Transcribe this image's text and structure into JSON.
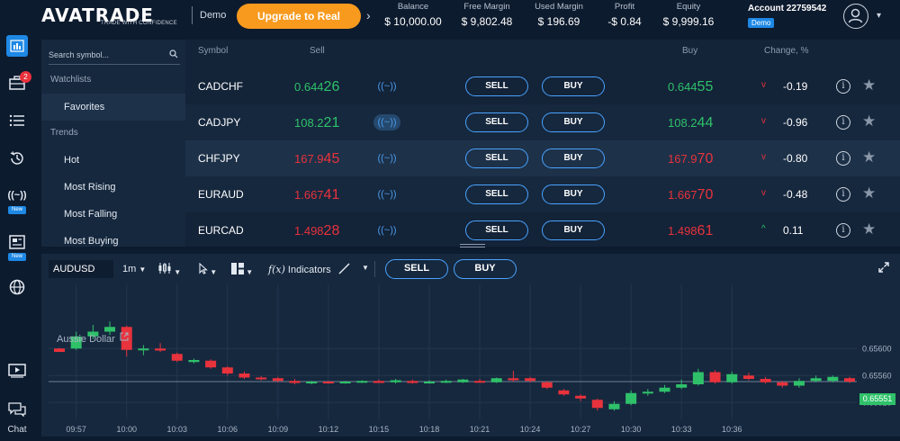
{
  "header": {
    "logo_text": "AVATRADE",
    "logo_tagline": "TRADE WITH CONFIDENCE",
    "mode": "Demo",
    "upgrade_label": "Upgrade to Real",
    "stats": [
      {
        "label": "Balance",
        "value": "$ 10,000.00"
      },
      {
        "label": "Free Margin",
        "value": "$ 9,802.48"
      },
      {
        "label": "Used Margin",
        "value": "$ 196.69"
      },
      {
        "label": "Profit",
        "value": "-$ 0.84"
      },
      {
        "label": "Equity",
        "value": "$ 9,999.16"
      }
    ],
    "account_title": "Account 22759542",
    "account_badge": "Demo"
  },
  "sidenav": {
    "badge_count": "2",
    "new_label": "New",
    "chat_label": "Chat"
  },
  "watchlist": {
    "search_placeholder": "Search symbol...",
    "items": [
      {
        "label": "Watchlists",
        "kind": "head"
      },
      {
        "label": "Favorites",
        "kind": "sub"
      },
      {
        "label": "Trends",
        "kind": "head"
      },
      {
        "label": "Hot",
        "kind": "sub"
      },
      {
        "label": "Most Rising",
        "kind": "sub"
      },
      {
        "label": "Most Falling",
        "kind": "sub"
      },
      {
        "label": "Most Buying",
        "kind": "sub"
      }
    ]
  },
  "table": {
    "columns": {
      "symbol": "Symbol",
      "sell": "Sell",
      "buy": "Buy",
      "change": "Change, %"
    },
    "wave_glyph": "((~))",
    "sell_label": "SELL",
    "buy_label": "BUY",
    "rows": [
      {
        "symbol": "CADCHF",
        "sell_pre": "0.644",
        "sell_big": "26",
        "buy_pre": "0.644",
        "buy_big": "55",
        "color": "green",
        "direction": "down",
        "change": "-0.19"
      },
      {
        "symbol": "CADJPY",
        "sell_pre": "108.2",
        "sell_big": "21",
        "buy_pre": "108.2",
        "buy_big": "44",
        "color": "green",
        "direction": "down",
        "change": "-0.96"
      },
      {
        "symbol": "CHFJPY",
        "sell_pre": "167.9",
        "sell_big": "45",
        "buy_pre": "167.9",
        "buy_big": "70",
        "color": "red",
        "direction": "down",
        "change": "-0.80"
      },
      {
        "symbol": "EURAUD",
        "sell_pre": "1.667",
        "sell_big": "41",
        "buy_pre": "1.667",
        "buy_big": "70",
        "color": "red",
        "direction": "down",
        "change": "-0.48"
      },
      {
        "symbol": "EURCAD",
        "sell_pre": "1.498",
        "sell_big": "28",
        "buy_pre": "1.498",
        "buy_big": "61",
        "color": "red",
        "direction": "up",
        "change": "0.11"
      }
    ]
  },
  "chart_toolbar": {
    "symbol": "AUDUSD",
    "timeframe": "1m",
    "indicators_label": "Indicators",
    "sell_label": "SELL",
    "buy_label": "BUY"
  },
  "chart_data": {
    "type": "candlestick",
    "title": "Aussie Dollar",
    "current_price": "0.65551",
    "y_ticks": [
      "0.65600",
      "0.65560",
      "0.65520"
    ],
    "ylim": [
      0.65495,
      0.65695
    ],
    "x_ticks": [
      "09:57",
      "10:00",
      "10:03",
      "10:06",
      "10:09",
      "10:12",
      "10:15",
      "10:18",
      "10:21",
      "10:24",
      "10:27",
      "10:30",
      "10:33",
      "10:36"
    ],
    "candles": [
      {
        "o": 0.656,
        "h": 0.65601,
        "l": 0.65595,
        "c": 0.65595
      },
      {
        "o": 0.656,
        "h": 0.65625,
        "l": 0.65598,
        "c": 0.65618
      },
      {
        "o": 0.65618,
        "h": 0.65635,
        "l": 0.65614,
        "c": 0.65625
      },
      {
        "o": 0.65625,
        "h": 0.6564,
        "l": 0.6562,
        "c": 0.65632
      },
      {
        "o": 0.65632,
        "h": 0.65634,
        "l": 0.65588,
        "c": 0.65598
      },
      {
        "o": 0.65598,
        "h": 0.65605,
        "l": 0.6559,
        "c": 0.656
      },
      {
        "o": 0.656,
        "h": 0.65608,
        "l": 0.65595,
        "c": 0.65597
      },
      {
        "o": 0.65592,
        "h": 0.65594,
        "l": 0.6558,
        "c": 0.65582
      },
      {
        "o": 0.6558,
        "h": 0.65585,
        "l": 0.65578,
        "c": 0.65583
      },
      {
        "o": 0.65582,
        "h": 0.65584,
        "l": 0.6557,
        "c": 0.65572
      },
      {
        "o": 0.65572,
        "h": 0.65574,
        "l": 0.6556,
        "c": 0.65563
      },
      {
        "o": 0.65563,
        "h": 0.65566,
        "l": 0.65555,
        "c": 0.65557
      },
      {
        "o": 0.65557,
        "h": 0.65559,
        "l": 0.65553,
        "c": 0.65556
      },
      {
        "o": 0.65556,
        "h": 0.65558,
        "l": 0.6555,
        "c": 0.65552
      },
      {
        "o": 0.65552,
        "h": 0.65555,
        "l": 0.65547,
        "c": 0.65549
      },
      {
        "o": 0.65549,
        "h": 0.65552,
        "l": 0.65547,
        "c": 0.65551
      },
      {
        "o": 0.65551,
        "h": 0.65552,
        "l": 0.65548,
        "c": 0.6555
      },
      {
        "o": 0.6555,
        "h": 0.65552,
        "l": 0.65548,
        "c": 0.65551
      },
      {
        "o": 0.6555,
        "h": 0.65553,
        "l": 0.65549,
        "c": 0.65552
      },
      {
        "o": 0.65552,
        "h": 0.65554,
        "l": 0.65549,
        "c": 0.65549
      },
      {
        "o": 0.6555,
        "h": 0.65555,
        "l": 0.65548,
        "c": 0.65553
      },
      {
        "o": 0.65552,
        "h": 0.65554,
        "l": 0.65548,
        "c": 0.65549
      },
      {
        "o": 0.6555,
        "h": 0.65553,
        "l": 0.65548,
        "c": 0.65551
      },
      {
        "o": 0.65551,
        "h": 0.65554,
        "l": 0.65549,
        "c": 0.65552
      },
      {
        "o": 0.6555,
        "h": 0.65555,
        "l": 0.65549,
        "c": 0.65554
      },
      {
        "o": 0.65552,
        "h": 0.65555,
        "l": 0.6555,
        "c": 0.6555
      },
      {
        "o": 0.6555,
        "h": 0.65557,
        "l": 0.65549,
        "c": 0.65556
      },
      {
        "o": 0.65556,
        "h": 0.65567,
        "l": 0.65551,
        "c": 0.65553
      },
      {
        "o": 0.65556,
        "h": 0.65558,
        "l": 0.6555,
        "c": 0.65552
      },
      {
        "o": 0.6555,
        "h": 0.65552,
        "l": 0.6554,
        "c": 0.65542
      },
      {
        "o": 0.65538,
        "h": 0.6554,
        "l": 0.6553,
        "c": 0.65532
      },
      {
        "o": 0.6553,
        "h": 0.65532,
        "l": 0.65522,
        "c": 0.65526
      },
      {
        "o": 0.65524,
        "h": 0.65526,
        "l": 0.65508,
        "c": 0.65512
      },
      {
        "o": 0.6551,
        "h": 0.65522,
        "l": 0.65508,
        "c": 0.65518
      },
      {
        "o": 0.65518,
        "h": 0.65538,
        "l": 0.65516,
        "c": 0.65534
      },
      {
        "o": 0.65535,
        "h": 0.6554,
        "l": 0.6553,
        "c": 0.65536
      },
      {
        "o": 0.65536,
        "h": 0.65546,
        "l": 0.65534,
        "c": 0.65542
      },
      {
        "o": 0.65542,
        "h": 0.65554,
        "l": 0.6554,
        "c": 0.65547
      },
      {
        "o": 0.65547,
        "h": 0.6557,
        "l": 0.65545,
        "c": 0.65565
      },
      {
        "o": 0.65565,
        "h": 0.65568,
        "l": 0.65548,
        "c": 0.6555
      },
      {
        "o": 0.6555,
        "h": 0.65566,
        "l": 0.65548,
        "c": 0.65562
      },
      {
        "o": 0.6556,
        "h": 0.65564,
        "l": 0.65553,
        "c": 0.65555
      },
      {
        "o": 0.65555,
        "h": 0.65558,
        "l": 0.65548,
        "c": 0.6555
      },
      {
        "o": 0.6555,
        "h": 0.65552,
        "l": 0.65542,
        "c": 0.65545
      },
      {
        "o": 0.65545,
        "h": 0.65556,
        "l": 0.65542,
        "c": 0.65552
      },
      {
        "o": 0.65552,
        "h": 0.6556,
        "l": 0.6555,
        "c": 0.65556
      },
      {
        "o": 0.65552,
        "h": 0.6556,
        "l": 0.6555,
        "c": 0.65558
      },
      {
        "o": 0.65556,
        "h": 0.65558,
        "l": 0.65549,
        "c": 0.65551
      }
    ]
  },
  "colors": {
    "accent": "#f79a1e",
    "up": "#2fc16a",
    "down": "#e8323c",
    "button_border": "#4aa3ff"
  }
}
